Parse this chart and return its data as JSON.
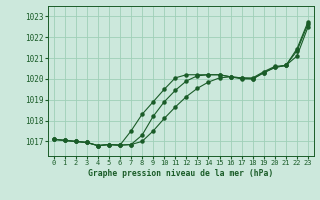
{
  "title": "Graphe pression niveau de la mer (hPa)",
  "background_color": "#cce8dc",
  "grid_color": "#9fcfb8",
  "line_color": "#1a5c28",
  "xlim": [
    -0.5,
    23.5
  ],
  "ylim": [
    1016.3,
    1023.5
  ],
  "yticks": [
    1017,
    1018,
    1019,
    1020,
    1021,
    1022,
    1023
  ],
  "xticks": [
    0,
    1,
    2,
    3,
    4,
    5,
    6,
    7,
    8,
    9,
    10,
    11,
    12,
    13,
    14,
    15,
    16,
    17,
    18,
    19,
    20,
    21,
    22,
    23
  ],
  "series1_x": [
    0,
    1,
    2,
    3,
    4,
    5,
    6,
    7,
    8,
    9,
    10,
    11,
    12,
    13,
    14,
    15,
    16,
    17,
    18,
    19,
    20,
    21,
    22,
    23
  ],
  "series1_y": [
    1017.1,
    1017.05,
    1017.0,
    1016.95,
    1016.8,
    1016.85,
    1016.82,
    1016.85,
    1017.3,
    1018.2,
    1018.9,
    1019.45,
    1019.9,
    1020.15,
    1020.2,
    1020.2,
    1020.1,
    1020.05,
    1020.0,
    1020.3,
    1020.55,
    1020.65,
    1021.1,
    1022.5
  ],
  "series2_x": [
    0,
    1,
    2,
    3,
    4,
    5,
    6,
    7,
    8,
    9,
    10,
    11,
    12,
    13,
    14,
    15,
    16,
    17,
    18,
    19,
    20,
    21,
    22,
    23
  ],
  "series2_y": [
    1017.1,
    1017.05,
    1017.0,
    1016.95,
    1016.8,
    1016.85,
    1016.82,
    1017.5,
    1018.3,
    1018.9,
    1019.5,
    1020.05,
    1020.2,
    1020.2,
    1020.2,
    1020.2,
    1020.1,
    1020.0,
    1020.0,
    1020.3,
    1020.55,
    1020.65,
    1021.35,
    1022.65
  ],
  "series3_x": [
    0,
    1,
    2,
    3,
    4,
    5,
    6,
    7,
    8,
    9,
    10,
    11,
    12,
    13,
    14,
    15,
    16,
    17,
    18,
    19,
    20,
    21,
    22,
    23
  ],
  "series3_y": [
    1017.1,
    1017.05,
    1017.0,
    1016.95,
    1016.8,
    1016.85,
    1016.82,
    1016.85,
    1017.0,
    1017.5,
    1018.1,
    1018.65,
    1019.15,
    1019.55,
    1019.85,
    1020.05,
    1020.1,
    1020.05,
    1020.05,
    1020.35,
    1020.6,
    1020.65,
    1021.45,
    1022.75
  ]
}
